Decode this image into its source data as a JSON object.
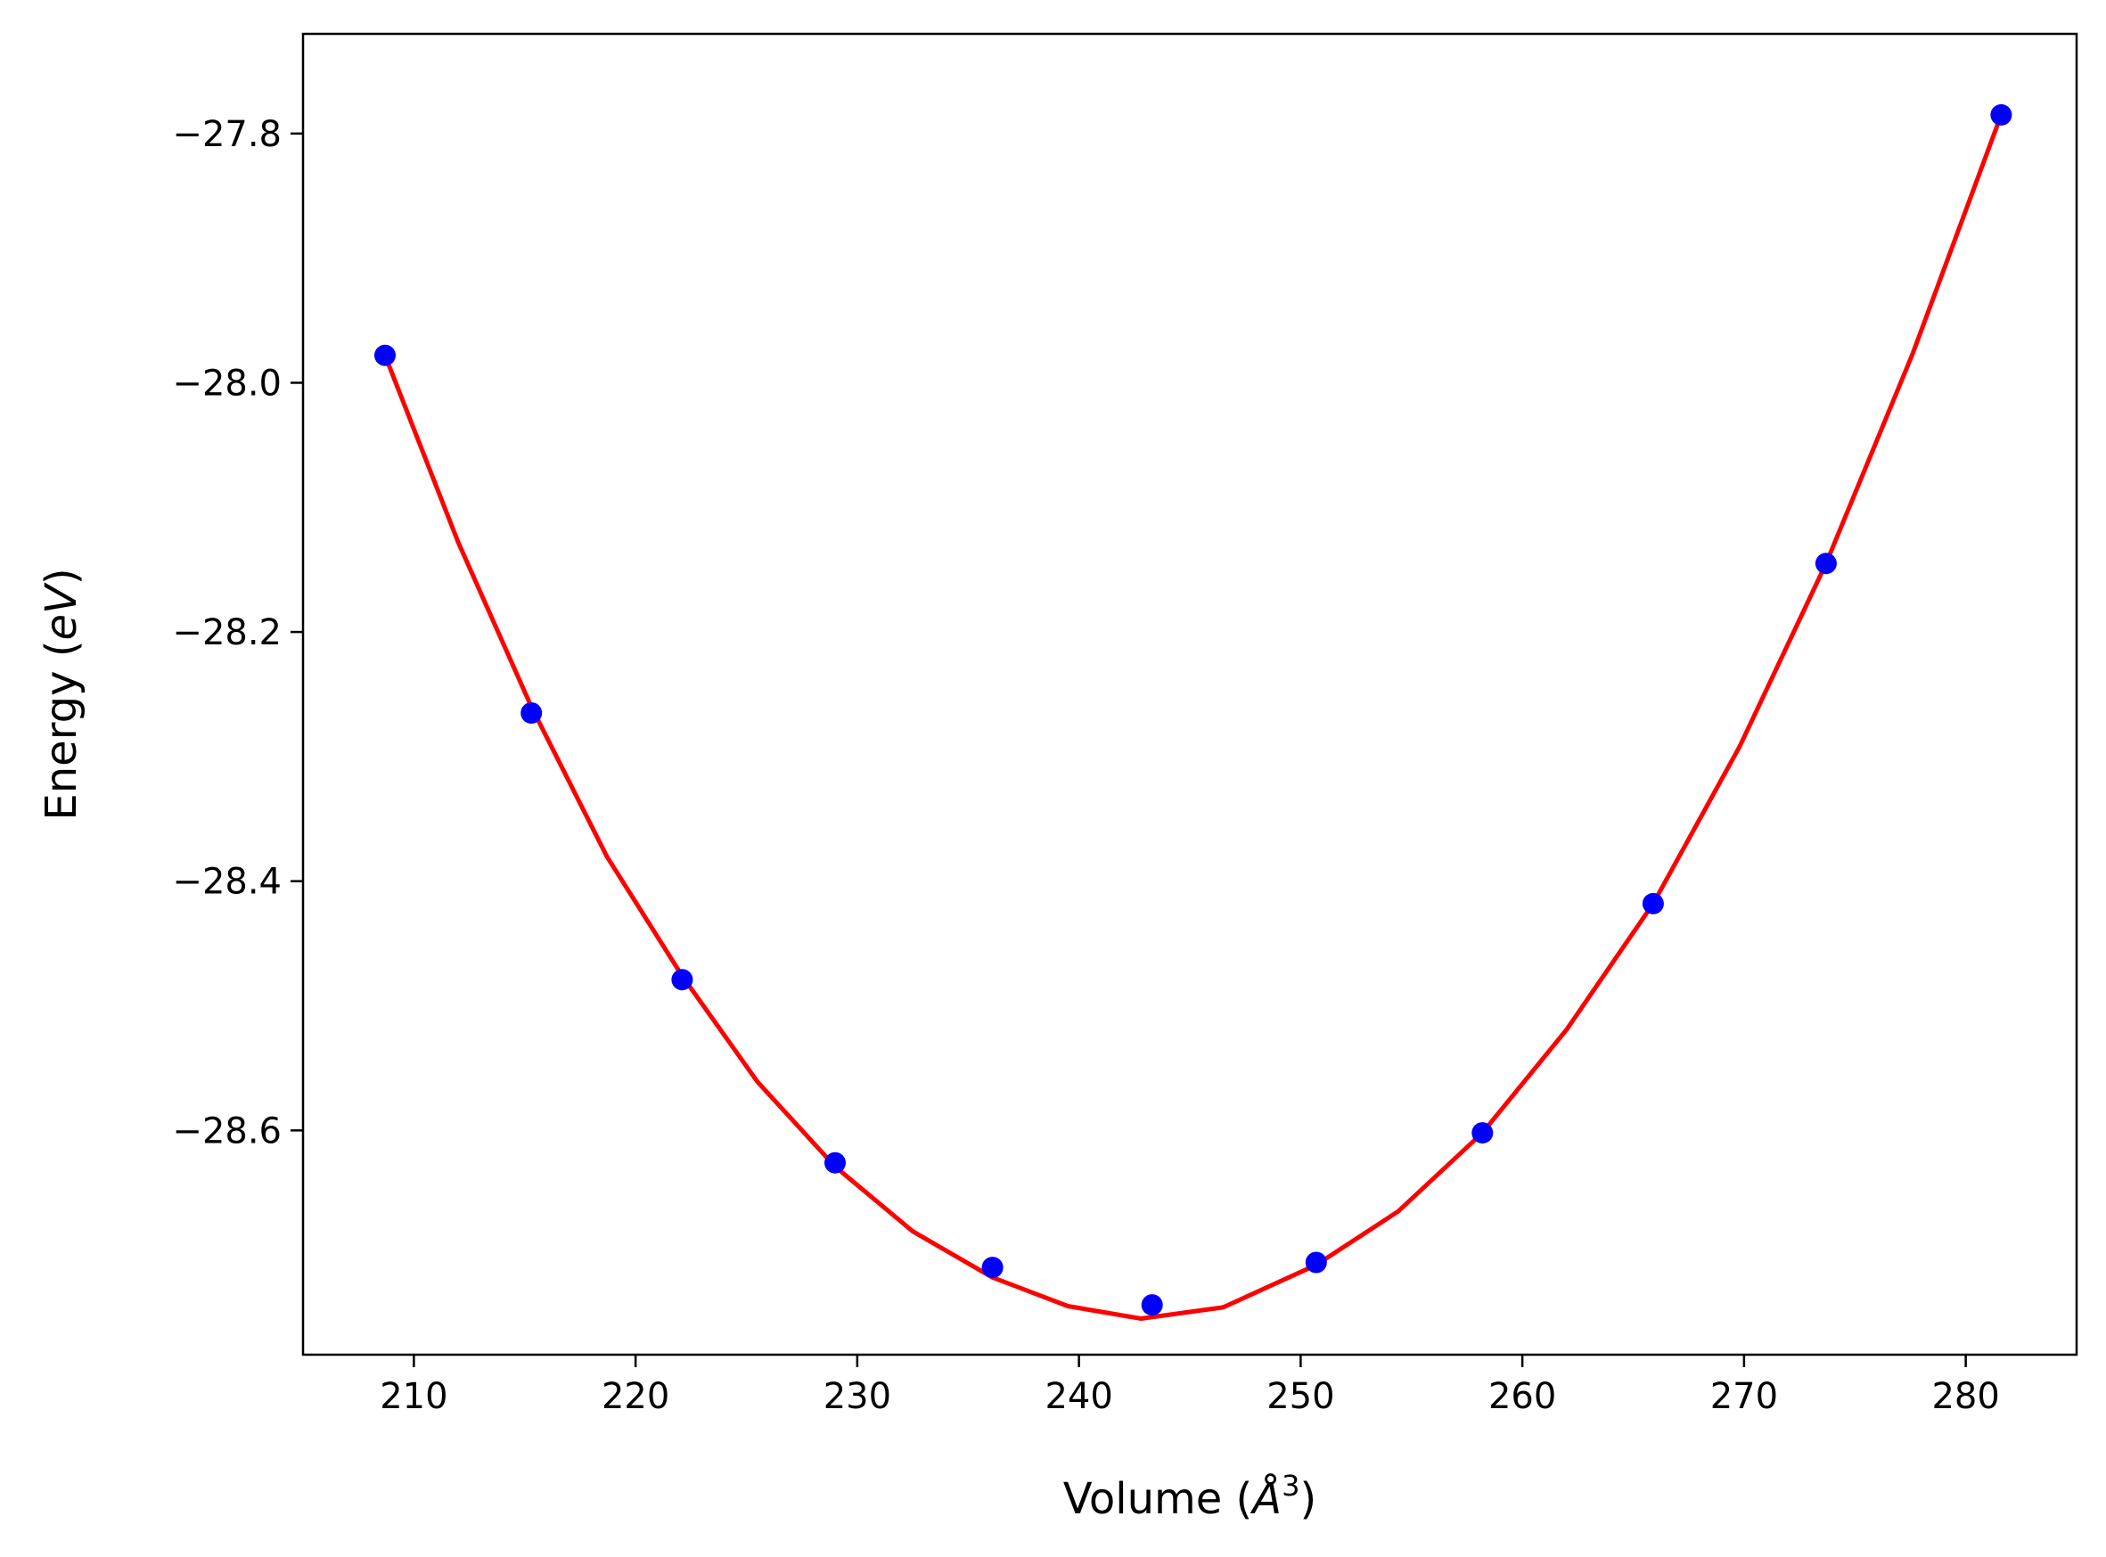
{
  "chart_data": {
    "type": "scatter",
    "title": "",
    "xlabel": "Volume (Å³)",
    "xlabel_parts": {
      "before": "Volume (",
      "symbol": "Å",
      "sup": "3",
      "after": ")"
    },
    "ylabel": "Energy (eV)",
    "ylabel_parts": {
      "before": "Energy (",
      "italic": "eV",
      "after": ")"
    },
    "xlim": [
      205,
      285
    ],
    "ylim": [
      -28.78,
      -27.72
    ],
    "xticks": [
      210,
      220,
      230,
      240,
      250,
      260,
      270,
      280
    ],
    "yticks": [
      -27.8,
      -28.0,
      -28.2,
      -28.4,
      -28.6
    ],
    "xtick_labels": [
      "210",
      "220",
      "230",
      "240",
      "250",
      "260",
      "270",
      "280"
    ],
    "ytick_labels": [
      "−27.8",
      "−28.0",
      "−28.2",
      "−28.4",
      "−28.6"
    ],
    "grid": false,
    "legend": "none",
    "series": [
      {
        "kind": "scatter",
        "color": "#0000ff",
        "x": [
          208.7,
          215.3,
          222.1,
          229.0,
          236.1,
          243.3,
          250.7,
          258.2,
          265.9,
          273.7,
          281.6
        ],
        "y": [
          -27.978,
          -28.265,
          -28.479,
          -28.626,
          -28.71,
          -28.74,
          -28.706,
          -28.602,
          -28.418,
          -28.145,
          -27.785
        ]
      },
      {
        "kind": "fit",
        "color": "#ff0000",
        "x": [
          208.7,
          212.0,
          215.3,
          218.7,
          222.1,
          225.5,
          229.0,
          232.5,
          236.1,
          239.5,
          242.8,
          246.5,
          250.7,
          254.4,
          258.2,
          262.0,
          265.9,
          269.8,
          273.7,
          277.6,
          281.6
        ],
        "y": [
          -27.978,
          -28.128,
          -28.26,
          -28.38,
          -28.476,
          -28.561,
          -28.629,
          -28.681,
          -28.718,
          -28.741,
          -28.751,
          -28.742,
          -28.708,
          -28.665,
          -28.602,
          -28.519,
          -28.418,
          -28.292,
          -28.145,
          -27.977,
          -27.785
        ]
      }
    ]
  }
}
